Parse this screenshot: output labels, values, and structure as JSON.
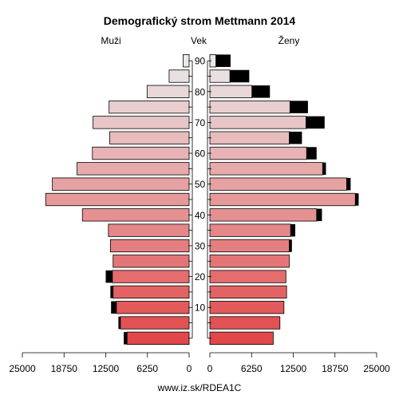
{
  "chart_data": {
    "type": "bar",
    "title": "Demografický strom Mettmann 2014",
    "left_label": "Muži",
    "center_label": "Vek",
    "right_label": "Ženy",
    "source": "www.iz.sk/RDEA1C",
    "age_groups": [
      "0-4",
      "5-9",
      "10-14",
      "15-19",
      "20-24",
      "25-29",
      "30-34",
      "35-39",
      "40-44",
      "45-49",
      "50-54",
      "55-59",
      "60-64",
      "65-69",
      "70-74",
      "75-79",
      "80-84",
      "85-89",
      "90+"
    ],
    "age_ticks": [
      "10",
      "20",
      "30",
      "40",
      "50",
      "60",
      "70",
      "80",
      "90"
    ],
    "x_ticks_left": [
      "25000",
      "18750",
      "12500",
      "6250",
      "0"
    ],
    "x_ticks_right": [
      "0",
      "6250",
      "12500",
      "18750",
      "25000"
    ],
    "x_max": 25000,
    "series": [
      {
        "name": "Muži",
        "base": [
          9300,
          10300,
          10900,
          11400,
          11500,
          11400,
          11800,
          12100,
          16000,
          21500,
          20500,
          16800,
          14500,
          11900,
          14400,
          12000,
          6300,
          3000,
          900
        ],
        "excess": [
          500,
          300,
          800,
          400,
          1000,
          0,
          0,
          0,
          0,
          0,
          0,
          0,
          0,
          0,
          0,
          0,
          0,
          0,
          0
        ]
      },
      {
        "name": "Ženy",
        "base": [
          9500,
          10500,
          11100,
          11500,
          11400,
          11900,
          11900,
          12100,
          16000,
          21800,
          20500,
          16900,
          14500,
          11900,
          14400,
          12000,
          6300,
          3000,
          900
        ],
        "excess": [
          0,
          0,
          0,
          0,
          0,
          0,
          400,
          700,
          800,
          500,
          600,
          500,
          1500,
          1900,
          2800,
          2700,
          2700,
          2900,
          2200
        ]
      }
    ]
  }
}
